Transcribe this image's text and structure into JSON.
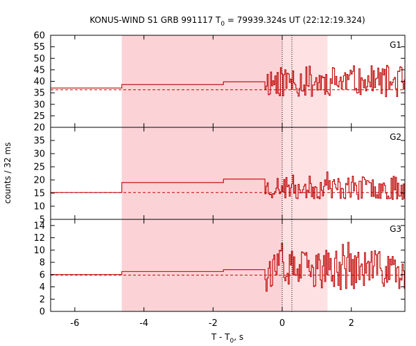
{
  "chart_data": {
    "type": "line",
    "title": {
      "prefix": "KONUS-WIND S1 GRB 991117 T",
      "sub": "0",
      "suffix": " = 79939.324s UT (22:12:19.324)"
    },
    "xlabel": {
      "prefix": "T - T",
      "sub": "0",
      "suffix": ", s"
    },
    "ylabel": "counts / 32 ms",
    "xlim": [
      -6.7,
      3.55
    ],
    "x_ticks": [
      -6,
      -4,
      -2,
      0,
      2
    ],
    "x_tick_labels": [
      "-6",
      "-4",
      "-2",
      "0",
      "2"
    ],
    "shaded_regions": [
      {
        "start": -4.64,
        "end": 1.31,
        "color": "#fde1e3"
      },
      {
        "start": -4.64,
        "end": 0.0,
        "color": "#fbd3d6"
      }
    ],
    "vertical_markers": [
      0.0,
      0.28
    ],
    "line_color": "#c00000",
    "panels": [
      {
        "name": "G1",
        "ylim": [
          20,
          60
        ],
        "y_ticks": [
          20,
          25,
          30,
          35,
          40,
          45,
          50,
          55,
          60
        ],
        "y_tick_labels": [
          "20",
          "25",
          "30",
          "35",
          "40",
          "45",
          "50",
          "55",
          "60"
        ],
        "background": 36.3,
        "steps": [
          {
            "start": -6.7,
            "end": -4.64,
            "value": 37.1
          },
          {
            "start": -4.64,
            "end": -1.7,
            "value": 38.6
          },
          {
            "start": -1.7,
            "end": -0.5,
            "value": 39.8
          }
        ],
        "burst": {
          "start": -0.5,
          "dt": 0.032,
          "base": 40,
          "noise": 7,
          "min": 22.5,
          "max": 57,
          "seed": 11
        }
      },
      {
        "name": "G2",
        "ylim": [
          5,
          40
        ],
        "y_ticks": [
          5,
          10,
          15,
          20,
          25,
          30,
          35
        ],
        "y_tick_labels": [
          "5",
          "10",
          "15",
          "20",
          "25",
          "30",
          "35"
        ],
        "background": 15.2,
        "steps": [
          {
            "start": -6.7,
            "end": -4.64,
            "value": 15.2
          },
          {
            "start": -4.64,
            "end": -1.7,
            "value": 19.0
          },
          {
            "start": -1.7,
            "end": -0.5,
            "value": 20.3
          }
        ],
        "burst": {
          "start": -0.5,
          "dt": 0.032,
          "base": 17,
          "noise": 4.5,
          "min": 11,
          "max": 35,
          "seed": 23
        }
      },
      {
        "name": "G3",
        "ylim": [
          0,
          15
        ],
        "y_ticks": [
          0,
          2,
          4,
          6,
          8,
          10,
          12,
          14
        ],
        "y_tick_labels": [
          "0",
          "2",
          "4",
          "6",
          "8",
          "10",
          "12",
          "14"
        ],
        "background": 5.9,
        "steps": [
          {
            "start": -6.7,
            "end": -4.64,
            "value": 6.0
          },
          {
            "start": -4.64,
            "end": -1.7,
            "value": 6.5
          },
          {
            "start": -1.7,
            "end": -0.5,
            "value": 6.8
          }
        ],
        "burst": {
          "start": -0.5,
          "dt": 0.032,
          "base": 6.8,
          "noise": 3.2,
          "min": 0.8,
          "max": 14,
          "seed": 37
        }
      }
    ]
  }
}
